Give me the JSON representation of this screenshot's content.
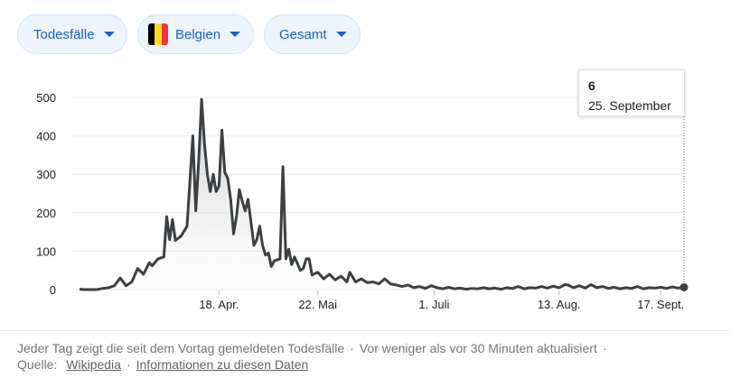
{
  "filters": [
    {
      "label": "Todesfälle"
    },
    {
      "label": "Belgien",
      "flag": [
        "#000000",
        "#fdda24",
        "#ef3340"
      ]
    },
    {
      "label": "Gesamt"
    }
  ],
  "tooltip": {
    "value": "6",
    "date": "25. September"
  },
  "footer": {
    "description": "Jeder Tag zeigt die seit dem Vortag gemeldeten Todesfälle",
    "updated": "Vor weniger als vor 30 Minuten aktualisiert",
    "source_label": "Quelle:",
    "source_link": "Wikipedia",
    "info_link": "Informationen zu diesen Daten"
  },
  "chart_data": {
    "type": "area",
    "ylim": [
      0,
      500
    ],
    "yticks": [
      0,
      100,
      200,
      300,
      400,
      500
    ],
    "xlim": [
      "2020-03-01",
      "2020-09-25"
    ],
    "xticks": [
      {
        "date": "2020-04-18",
        "label": "18. Apr."
      },
      {
        "date": "2020-05-22",
        "label": "22. Mai"
      },
      {
        "date": "2020-07-01",
        "label": "1. Juli"
      },
      {
        "date": "2020-08-13",
        "label": "13. Aug."
      },
      {
        "date": "2020-09-17",
        "label": "17. Sept."
      }
    ],
    "highlight": {
      "date": "2020-09-25",
      "value": 6
    },
    "series": [
      {
        "points": [
          [
            "2020-03-01",
            1
          ],
          [
            "2020-03-03",
            0
          ],
          [
            "2020-03-05",
            0
          ],
          [
            "2020-03-07",
            0
          ],
          [
            "2020-03-09",
            3
          ],
          [
            "2020-03-11",
            5
          ],
          [
            "2020-03-13",
            10
          ],
          [
            "2020-03-15",
            30
          ],
          [
            "2020-03-17",
            10
          ],
          [
            "2020-03-19",
            20
          ],
          [
            "2020-03-21",
            55
          ],
          [
            "2020-03-23",
            40
          ],
          [
            "2020-03-25",
            70
          ],
          [
            "2020-03-26",
            62
          ],
          [
            "2020-03-28",
            80
          ],
          [
            "2020-03-30",
            85
          ],
          [
            "2020-03-31",
            190
          ],
          [
            "2020-04-01",
            130
          ],
          [
            "2020-04-02",
            182
          ],
          [
            "2020-04-03",
            128
          ],
          [
            "2020-04-05",
            140
          ],
          [
            "2020-04-07",
            165
          ],
          [
            "2020-04-09",
            400
          ],
          [
            "2020-04-10",
            205
          ],
          [
            "2020-04-11",
            335
          ],
          [
            "2020-04-12",
            495
          ],
          [
            "2020-04-13",
            380
          ],
          [
            "2020-04-14",
            300
          ],
          [
            "2020-04-15",
            255
          ],
          [
            "2020-04-16",
            300
          ],
          [
            "2020-04-17",
            255
          ],
          [
            "2020-04-18",
            270
          ],
          [
            "2020-04-19",
            415
          ],
          [
            "2020-04-20",
            305
          ],
          [
            "2020-04-21",
            290
          ],
          [
            "2020-04-22",
            235
          ],
          [
            "2020-04-23",
            145
          ],
          [
            "2020-04-24",
            190
          ],
          [
            "2020-04-25",
            260
          ],
          [
            "2020-04-26",
            230
          ],
          [
            "2020-04-27",
            205
          ],
          [
            "2020-04-28",
            235
          ],
          [
            "2020-04-29",
            175
          ],
          [
            "2020-04-30",
            115
          ],
          [
            "2020-05-01",
            130
          ],
          [
            "2020-05-02",
            165
          ],
          [
            "2020-05-03",
            115
          ],
          [
            "2020-05-04",
            90
          ],
          [
            "2020-05-05",
            95
          ],
          [
            "2020-05-06",
            60
          ],
          [
            "2020-05-07",
            75
          ],
          [
            "2020-05-09",
            80
          ],
          [
            "2020-05-10",
            320
          ],
          [
            "2020-05-11",
            80
          ],
          [
            "2020-05-12",
            105
          ],
          [
            "2020-05-13",
            65
          ],
          [
            "2020-05-14",
            85
          ],
          [
            "2020-05-16",
            50
          ],
          [
            "2020-05-17",
            55
          ],
          [
            "2020-05-18",
            80
          ],
          [
            "2020-05-19",
            80
          ],
          [
            "2020-05-20",
            38
          ],
          [
            "2020-05-22",
            45
          ],
          [
            "2020-05-24",
            28
          ],
          [
            "2020-05-26",
            40
          ],
          [
            "2020-05-28",
            25
          ],
          [
            "2020-05-30",
            35
          ],
          [
            "2020-06-01",
            20
          ],
          [
            "2020-06-02",
            45
          ],
          [
            "2020-06-04",
            20
          ],
          [
            "2020-06-06",
            28
          ],
          [
            "2020-06-08",
            18
          ],
          [
            "2020-06-10",
            20
          ],
          [
            "2020-06-12",
            15
          ],
          [
            "2020-06-14",
            28
          ],
          [
            "2020-06-16",
            15
          ],
          [
            "2020-06-18",
            12
          ],
          [
            "2020-06-20",
            8
          ],
          [
            "2020-06-22",
            12
          ],
          [
            "2020-06-24",
            5
          ],
          [
            "2020-06-26",
            8
          ],
          [
            "2020-06-28",
            3
          ],
          [
            "2020-06-30",
            10
          ],
          [
            "2020-07-02",
            5
          ],
          [
            "2020-07-04",
            2
          ],
          [
            "2020-07-06",
            6
          ],
          [
            "2020-07-08",
            2
          ],
          [
            "2020-07-10",
            4
          ],
          [
            "2020-07-12",
            1
          ],
          [
            "2020-07-14",
            3
          ],
          [
            "2020-07-16",
            2
          ],
          [
            "2020-07-18",
            5
          ],
          [
            "2020-07-20",
            2
          ],
          [
            "2020-07-22",
            4
          ],
          [
            "2020-07-24",
            1
          ],
          [
            "2020-07-26",
            5
          ],
          [
            "2020-07-28",
            3
          ],
          [
            "2020-07-30",
            8
          ],
          [
            "2020-08-01",
            2
          ],
          [
            "2020-08-03",
            5
          ],
          [
            "2020-08-05",
            4
          ],
          [
            "2020-08-07",
            8
          ],
          [
            "2020-08-09",
            4
          ],
          [
            "2020-08-11",
            9
          ],
          [
            "2020-08-13",
            5
          ],
          [
            "2020-08-15",
            13
          ],
          [
            "2020-08-16",
            12
          ],
          [
            "2020-08-18",
            5
          ],
          [
            "2020-08-20",
            10
          ],
          [
            "2020-08-22",
            4
          ],
          [
            "2020-08-24",
            13
          ],
          [
            "2020-08-26",
            5
          ],
          [
            "2020-08-28",
            8
          ],
          [
            "2020-08-30",
            3
          ],
          [
            "2020-09-01",
            6
          ],
          [
            "2020-09-03",
            2
          ],
          [
            "2020-09-05",
            5
          ],
          [
            "2020-09-07",
            3
          ],
          [
            "2020-09-09",
            8
          ],
          [
            "2020-09-11",
            2
          ],
          [
            "2020-09-13",
            5
          ],
          [
            "2020-09-15",
            4
          ],
          [
            "2020-09-17",
            6
          ],
          [
            "2020-09-19",
            3
          ],
          [
            "2020-09-21",
            7
          ],
          [
            "2020-09-23",
            4
          ],
          [
            "2020-09-25",
            6
          ]
        ]
      }
    ]
  }
}
